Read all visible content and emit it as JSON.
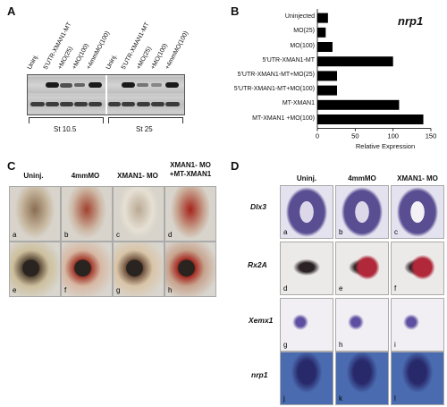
{
  "panel_a": {
    "label": "A",
    "lanes": [
      "Uninj.",
      "5'UTR-XMAN1-MT",
      "+MO(25)",
      "+MO(100)",
      "+4mmMO(100)",
      "Uninj.",
      "5'UTR-XMAN1-MT",
      "+MO(25)",
      "+MO(100)",
      "+4mmMO(100)"
    ],
    "stages": [
      "St 10.5",
      "St 25"
    ]
  },
  "panel_b": {
    "label": "B",
    "gene": "nrp1"
  },
  "chart_data": {
    "type": "bar",
    "orientation": "horizontal",
    "categories": [
      "Uninjected",
      "MO(25)",
      "MO(100)",
      "5'UTR-XMAN1-MT",
      "5'UTR-XMAN1-MT+MO(25)",
      "5'UTR-XMAN1-MT+MO(100)",
      "MT-XMAN1",
      "MT-XMAN1 +MO(100)"
    ],
    "values": [
      14,
      11,
      20,
      100,
      26,
      26,
      108,
      140
    ],
    "xlabel": "Relative Expression",
    "xticks": [
      0,
      50,
      100,
      150
    ],
    "xlim": [
      0,
      150
    ],
    "title": "nrp1",
    "bar_color": "#000000"
  },
  "panel_c": {
    "label": "C",
    "columns": [
      "Uninj.",
      "4mmMO",
      "XMAN1- MO",
      "XMAN1- MO +MT-XMAN1"
    ],
    "letters": [
      "a",
      "b",
      "c",
      "d",
      "e",
      "f",
      "g",
      "h"
    ]
  },
  "panel_d": {
    "label": "D",
    "columns": [
      "Uninj.",
      "4mmMO",
      "XMAN1- MO"
    ],
    "rows": [
      "Dlx3",
      "Rx2A",
      "Xemx1",
      "nrp1"
    ],
    "letters": [
      "a",
      "b",
      "c",
      "d",
      "e",
      "f",
      "g",
      "h",
      "i",
      "j",
      "k",
      "l"
    ]
  }
}
